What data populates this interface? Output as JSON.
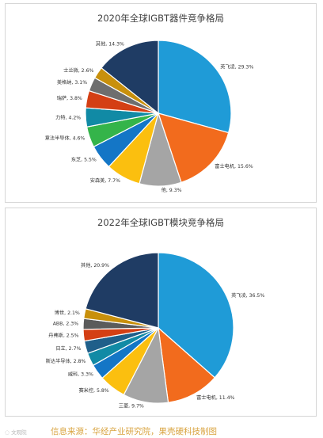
{
  "chart_data": [
    {
      "type": "pie",
      "title": "2020年全球IGBT器件竞争格局",
      "slices": [
        {
          "label": "英飞凌",
          "value": 29.3,
          "value_label": "29.3%",
          "color": "#1f9bd7"
        },
        {
          "label": "富士电机",
          "value": 15.6,
          "value_label": "15.6%",
          "color": "#f26b1d"
        },
        {
          "label": "他",
          "value": 9.3,
          "value_label": "9.3%",
          "color": "#a5a5a5"
        },
        {
          "label": "安森美",
          "value": 7.7,
          "value_label": "7.7%",
          "color": "#fbbf0f"
        },
        {
          "label": "东芝",
          "value": 5.5,
          "value_label": "5.5%",
          "color": "#1476c6"
        },
        {
          "label": "意法半导体",
          "value": 4.6,
          "value_label": "4.6%",
          "color": "#34b44a"
        },
        {
          "label": "力特",
          "value": 4.2,
          "value_label": "4.2%",
          "color": "#118aa5"
        },
        {
          "label": "瑞萨",
          "value": 3.8,
          "value_label": "3.8%",
          "color": "#d43f14"
        },
        {
          "label": "美格纳",
          "value": 3.1,
          "value_label": "3.1%",
          "color": "#6e6e6e"
        },
        {
          "label": "士兰微",
          "value": 2.6,
          "value_label": "2.6%",
          "color": "#c8900c"
        },
        {
          "label": "其他",
          "value": 14.3,
          "value_label": "14.3%",
          "color": "#1f3c64"
        }
      ]
    },
    {
      "type": "pie",
      "title": "2022年全球IGBT模块竞争格局",
      "slices": [
        {
          "label": "英飞凌",
          "value": 36.5,
          "value_label": "36.5%",
          "color": "#1f9bd7"
        },
        {
          "label": "富士电机",
          "value": 11.4,
          "value_label": "11.4%",
          "color": "#f26b1d"
        },
        {
          "label": "三菱",
          "value": 9.7,
          "value_label": "9.7%",
          "color": "#a5a5a5"
        },
        {
          "label": "赛米控",
          "value": 5.8,
          "value_label": "5.8%",
          "color": "#fbbf0f"
        },
        {
          "label": "威科",
          "value": 3.3,
          "value_label": "3.3%",
          "color": "#1476c6"
        },
        {
          "label": "斯达半导体",
          "value": 2.8,
          "value_label": "2.8%",
          "color": "#118aa5"
        },
        {
          "label": "日立",
          "value": 2.7,
          "value_label": "2.7%",
          "color": "#1f5f8a"
        },
        {
          "label": "丹弗斯",
          "value": 2.5,
          "value_label": "2.5%",
          "color": "#d43f14"
        },
        {
          "label": "ABB",
          "value": 2.3,
          "value_label": "2.3%",
          "color": "#5b5b5b"
        },
        {
          "label": "博世",
          "value": 2.1,
          "value_label": "2.1%",
          "color": "#c8900c"
        },
        {
          "label": "其他",
          "value": 20.9,
          "value_label": "20.9%",
          "color": "#1f3c64"
        }
      ]
    }
  ],
  "footer": {
    "source_text": "信息来源：华经产业研究院，果壳硬科技制图",
    "watermark": "文观院"
  }
}
